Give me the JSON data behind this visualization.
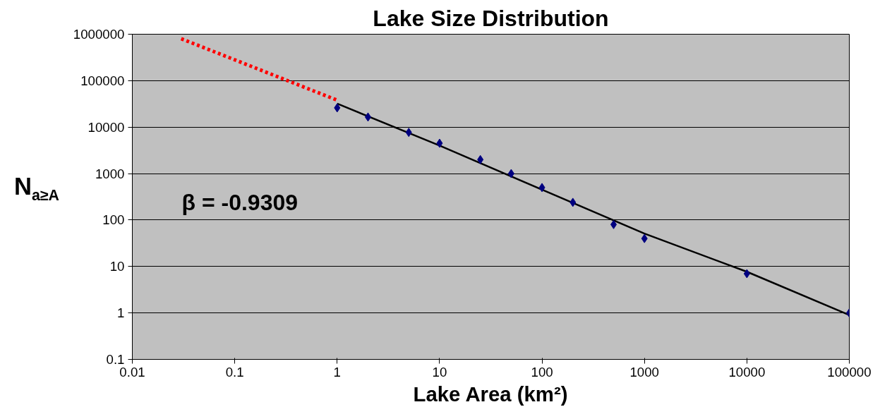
{
  "chart_data": {
    "type": "scatter",
    "title": "Lake Size Distribution",
    "xlabel": "Lake Area (km²)",
    "ylabel": "N$_{a≥A}$",
    "log": "xy",
    "xlim": [
      0.01,
      100000
    ],
    "ylim": [
      0.1,
      1000000
    ],
    "xticks": [
      0.01,
      0.1,
      1,
      10,
      100,
      1000,
      10000,
      100000
    ],
    "yticks": [
      0.1,
      1,
      10,
      100,
      1000,
      10000,
      100000,
      1000000
    ],
    "grid": "y",
    "annotations": [
      "β = -0.9309"
    ],
    "series": [
      {
        "type": "line",
        "marker": "none",
        "color": "#ff0000",
        "line_style": "dotted",
        "x": [
          0.03,
          1
        ],
        "values": [
          800000,
          38000
        ]
      },
      {
        "type": "line",
        "marker": "none",
        "color": "#000000",
        "line_style": "solid",
        "x": [
          1,
          10,
          100,
          1000,
          10000,
          100000
        ],
        "values": [
          32000,
          4000,
          450,
          51,
          7.7,
          0.9
        ]
      },
      {
        "marker": "diamond",
        "color": "#000080",
        "x": [
          1,
          2,
          5,
          10,
          25,
          50,
          100,
          200,
          500,
          1000,
          10000,
          100000
        ],
        "values": [
          26000,
          16500,
          7700,
          4500,
          2000,
          1000,
          500,
          240,
          80,
          40,
          7,
          1
        ]
      }
    ]
  }
}
